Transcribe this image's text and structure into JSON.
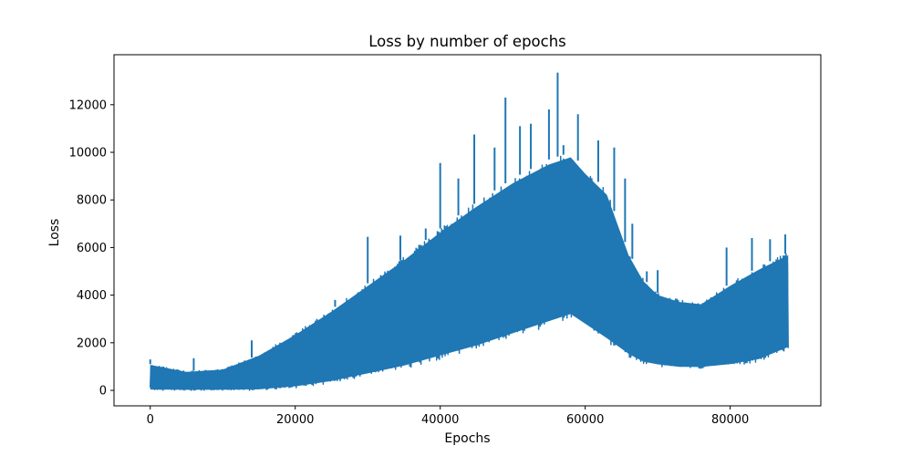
{
  "chart_data": {
    "type": "line",
    "title": "Loss by number of epochs",
    "xlabel": "Epochs",
    "ylabel": "Loss",
    "xlim": [
      -5000,
      92500
    ],
    "ylim": [
      -650,
      14100
    ],
    "xticks": [
      0,
      20000,
      40000,
      60000,
      80000
    ],
    "xtick_labels": [
      "0",
      "20000",
      "40000",
      "60000",
      "80000"
    ],
    "yticks": [
      0,
      2000,
      4000,
      6000,
      8000,
      10000,
      12000
    ],
    "ytick_labels": [
      "0",
      "2000",
      "4000",
      "6000",
      "8000",
      "10000",
      "12000"
    ],
    "grid": false,
    "legend": "none",
    "series": [
      {
        "color": "#1f77b4",
        "band_lower": {
          "x": [
            0,
            5000,
            10000,
            15000,
            20000,
            25000,
            30000,
            35000,
            40000,
            45000,
            50000,
            55000,
            58000,
            60000,
            63000,
            66000,
            68000,
            70000,
            73000,
            76000,
            80000,
            84000,
            88000
          ],
          "y": [
            0,
            0,
            0,
            0,
            100,
            300,
            600,
            900,
            1300,
            1700,
            2200,
            2700,
            3000,
            2600,
            2000,
            1400,
            1100,
            1000,
            900,
            900,
            1000,
            1200,
            1700
          ]
        },
        "band_upper": {
          "x": [
            0,
            5000,
            10000,
            15000,
            20000,
            25000,
            30000,
            35000,
            40000,
            45000,
            50000,
            55000,
            58000,
            60000,
            63000,
            66000,
            68000,
            70000,
            73000,
            76000,
            80000,
            84000,
            88000
          ],
          "y": [
            1100,
            800,
            900,
            1500,
            2400,
            3400,
            4500,
            5600,
            6800,
            7900,
            8900,
            9700,
            10000,
            9300,
            8400,
            5800,
            4700,
            4100,
            3800,
            3700,
            4500,
            5200,
            5800
          ]
        },
        "spikes": {
          "x": [
            0,
            6000,
            14000,
            25500,
            30000,
            34500,
            38000,
            40000,
            42500,
            44700,
            47500,
            49000,
            51000,
            52500,
            55000,
            56200,
            57000,
            59000,
            61800,
            64000,
            65500,
            66500,
            68500,
            70000,
            79500,
            83000,
            85500,
            87600
          ],
          "y": [
            1300,
            1350,
            2100,
            3800,
            6450,
            6500,
            6800,
            9550,
            8900,
            10750,
            10200,
            12300,
            11100,
            11200,
            11800,
            13350,
            10300,
            11600,
            10500,
            10200,
            8900,
            7000,
            5000,
            5050,
            6000,
            6400,
            6350,
            6550
          ]
        }
      }
    ]
  }
}
